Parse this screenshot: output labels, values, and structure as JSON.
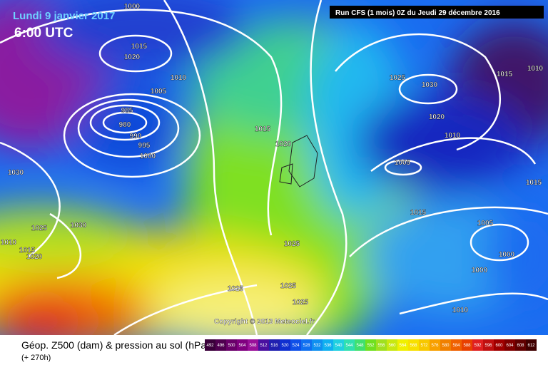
{
  "header": {
    "date": "Lundi 9 janvier 2017",
    "time": "6:00 UTC",
    "run": "Run CFS (1 mois) 0Z du Jeudi 29 décembre 2016"
  },
  "copyright": "Copyright © 2013 Meteociel.fr",
  "footer": {
    "title": "Géop. Z500 (dam) & pression au sol (hPa)",
    "lead": "(+ 270h)"
  },
  "isobar_labels": [
    1000,
    1015,
    1020,
    1010,
    1005,
    985,
    980,
    990,
    995,
    1000,
    1015,
    1020,
    1030,
    1025,
    1030,
    1010,
    1015,
    1020,
    1025,
    1025,
    1025,
    1025,
    1025,
    1030,
    1020,
    1010,
    1005,
    1015,
    1010,
    1015,
    1005,
    1015,
    1000,
    1000,
    1010
  ],
  "colorbar": {
    "ticks": [
      492,
      496,
      500,
      504,
      508,
      512,
      516,
      520,
      524,
      528,
      532,
      536,
      540,
      544,
      548,
      552,
      556,
      560,
      564,
      568,
      572,
      576,
      580,
      584,
      588,
      592,
      596,
      600,
      604,
      608,
      612
    ]
  }
}
